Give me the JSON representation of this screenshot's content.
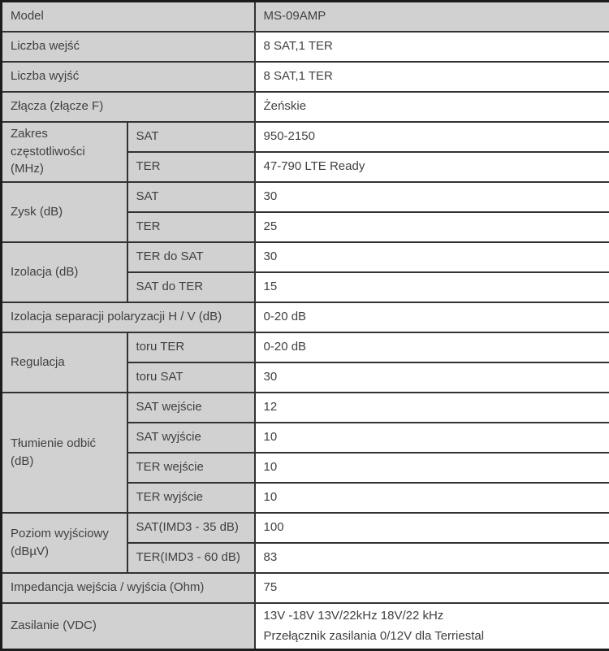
{
  "colors": {
    "cell_shaded_bg": "#d1d1d1",
    "cell_value_bg": "#ffffff",
    "border_inner": "#323232",
    "border_outer": "#1c1c1c",
    "text": "#404040"
  },
  "spec_groups": [
    {
      "label": "Model",
      "shaded_value": true,
      "rows": [
        {
          "value": "MS-09AMP"
        }
      ]
    },
    {
      "label": "Liczba wejść",
      "rows": [
        {
          "value": "8 SAT,1 TER"
        }
      ]
    },
    {
      "label": "Liczba wyjść",
      "rows": [
        {
          "value": "8 SAT,1 TER"
        }
      ]
    },
    {
      "label": "Złącza (złącze F)",
      "rows": [
        {
          "value": "Żeńskie"
        }
      ]
    },
    {
      "label": "Zakres częstotliwości (MHz)",
      "rows": [
        {
          "sub": "SAT",
          "value": "950-2150"
        },
        {
          "sub": "TER",
          "value": "47-790 LTE Ready"
        }
      ]
    },
    {
      "label": "Zysk (dB)",
      "rows": [
        {
          "sub": "SAT",
          "value": "30"
        },
        {
          "sub": "TER",
          "value": "25"
        }
      ]
    },
    {
      "label": "Izolacja (dB)",
      "rows": [
        {
          "sub": "TER do SAT",
          "value": "30"
        },
        {
          "sub": "SAT do TER",
          "value": "15"
        }
      ]
    },
    {
      "label": "Izolacja separacji polaryzacji H / V (dB)",
      "rows": [
        {
          "value": "0-20 dB"
        }
      ]
    },
    {
      "label": "Regulacja",
      "rows": [
        {
          "sub": "toru TER",
          "value": "0-20 dB"
        },
        {
          "sub": "toru SAT",
          "value": "30"
        }
      ]
    },
    {
      "label": "Tłumienie odbić (dB)",
      "rows": [
        {
          "sub": "SAT wejście",
          "value": "12"
        },
        {
          "sub": "SAT wyjście",
          "value": "10"
        },
        {
          "sub": "TER wejście",
          "value": "10"
        },
        {
          "sub": "TER wyjście",
          "value": "10"
        }
      ]
    },
    {
      "label": "Poziom wyjściowy (dBµV)",
      "rows": [
        {
          "sub": "SAT(IMD3 - 35 dB)",
          "value": "100"
        },
        {
          "sub": "TER(IMD3 - 60 dB)",
          "value": "83"
        }
      ]
    },
    {
      "label": "Impedancja wejścia / wyjścia (Ohm)",
      "rows": [
        {
          "value": "75"
        }
      ]
    },
    {
      "label": "Zasilanie (VDC)",
      "tall": true,
      "rows": [
        {
          "value_lines": [
            "13V -18V 13V/22kHz 18V/22 kHz",
            "Przełącznik zasilania 0/12V dla Terriestal"
          ]
        }
      ]
    }
  ]
}
